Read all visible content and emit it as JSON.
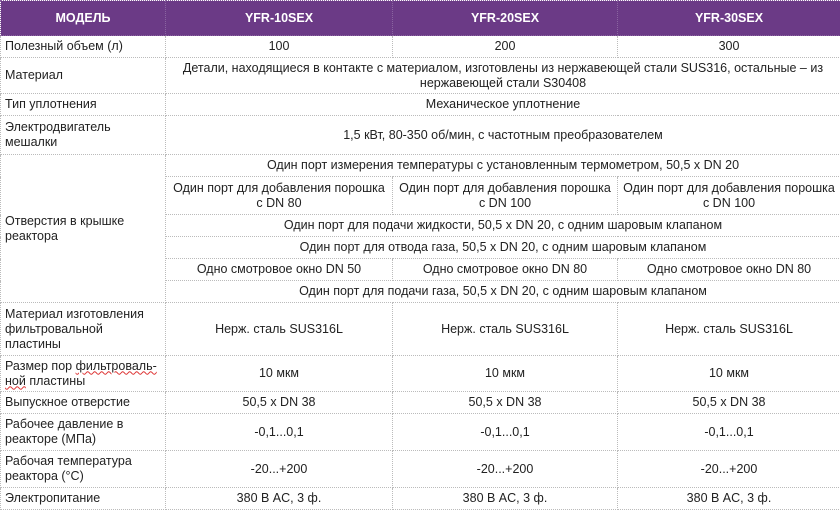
{
  "header": {
    "model": "МОДЕЛЬ",
    "models": [
      "YFR-10SEX",
      "YFR-20SEX",
      "YFR-30SEX"
    ],
    "header_color": "#6b3a86"
  },
  "rows": {
    "volume": {
      "label": "Полезный объем (л)",
      "values": [
        "100",
        "200",
        "300"
      ]
    },
    "material": {
      "label": "Материал",
      "value": "Детали, находящиеся в контакте с материалом, изготовлены из нержавеющей стали SUS316, остальные – из нержавеющей стали S30408"
    },
    "seal": {
      "label": "Тип уплотнения",
      "value": "Механическое уплотнение"
    },
    "motor": {
      "label": "Электродвигатель мешалки",
      "value": "1,5 кВт, 80-350 об/мин, с частотным преобразователем"
    },
    "ports": {
      "label": "Отверстия в крышке реактора",
      "temp_port": "Один порт измерения температуры с установленным термометром, 50,5 x DN 20",
      "powder_ports": [
        "Один порт для добавления порошка с DN 80",
        "Один порт для добавления порошка с DN 100",
        "Один порт для добавления порошка с DN 100"
      ],
      "liquid_port": "Один порт для подачи жидкости, 50,5 x DN 20, с одним шаровым клапаном",
      "gas_out_port": "Один порт для отвода газа, 50,5 x DN 20, с одним шаровым клапаном",
      "sight_windows": [
        "Одно смотровое окно DN 50",
        "Одно смотровое окно DN 80",
        "Одно смотровое окно DN 80"
      ],
      "gas_in_port": "Один порт для подачи газа, 50,5 x DN 20, с одним шаровым клапаном"
    },
    "filter_material": {
      "label": "Материал изготовления фильтровальной пластины",
      "values": [
        "Нерж. сталь SUS316L",
        "Нерж. сталь SUS316L",
        "Нерж. сталь SUS316L"
      ]
    },
    "pore_size": {
      "label_a": "Размер пор ",
      "label_b": "фильтроваль-",
      "label_c": "ной",
      "label_d": " пластины",
      "values": [
        "10 мкм",
        "10 мкм",
        "10 мкм"
      ]
    },
    "outlet": {
      "label": "Выпускное отверстие",
      "values": [
        "50,5 x DN 38",
        "50,5 x DN 38",
        "50,5 x DN 38"
      ]
    },
    "pressure": {
      "label": "Рабочее давление в реакторе (МПа)",
      "values": [
        "-0,1...0,1",
        "-0,1...0,1",
        "-0,1...0,1"
      ]
    },
    "temperature": {
      "label": "Рабочая температура реактора (°C)",
      "values": [
        "-20...+200",
        "-20...+200",
        "-20...+200"
      ]
    },
    "power": {
      "label": "Электропитание",
      "values": [
        "380 В AC, 3 ф.",
        "380 В AC, 3 ф.",
        "380 В AC, 3 ф."
      ]
    }
  }
}
